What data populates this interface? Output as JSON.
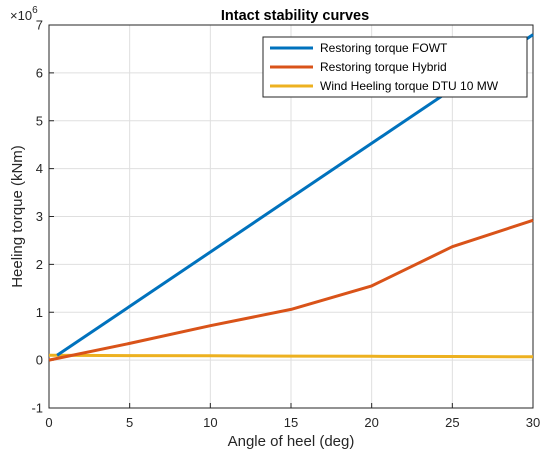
{
  "chart_data": {
    "type": "line",
    "title": "Intact stability curves",
    "xlabel": "Angle of heel (deg)",
    "ylabel": "Heeling torque (kNm)",
    "y_scale_base": "×10",
    "y_scale_exponent": "6",
    "xlim": [
      0,
      30
    ],
    "ylim": [
      -1,
      7
    ],
    "x_ticks": [
      "0",
      "5",
      "10",
      "15",
      "20",
      "25",
      "30"
    ],
    "y_ticks": [
      "-1",
      "0",
      "1",
      "2",
      "3",
      "4",
      "5",
      "6",
      "7"
    ],
    "grid": true,
    "legend_position": "top-right",
    "series": [
      {
        "name": "Restoring torque FOWT",
        "color": "#0072BD",
        "x": [
          0.5,
          30
        ],
        "y": [
          0.1,
          6.8
        ]
      },
      {
        "name": "Restoring torque Hybrid",
        "color": "#D95319",
        "x": [
          0,
          5,
          10,
          15,
          20,
          25,
          30
        ],
        "y": [
          0.0,
          0.35,
          0.72,
          1.06,
          1.55,
          2.37,
          2.92
        ]
      },
      {
        "name": "Wind Heeling torque DTU 10 MW",
        "color": "#EDB120",
        "x": [
          0,
          5,
          10,
          15,
          20,
          25,
          30
        ],
        "y": [
          0.1,
          0.095,
          0.09,
          0.085,
          0.08,
          0.075,
          0.07
        ]
      }
    ]
  }
}
